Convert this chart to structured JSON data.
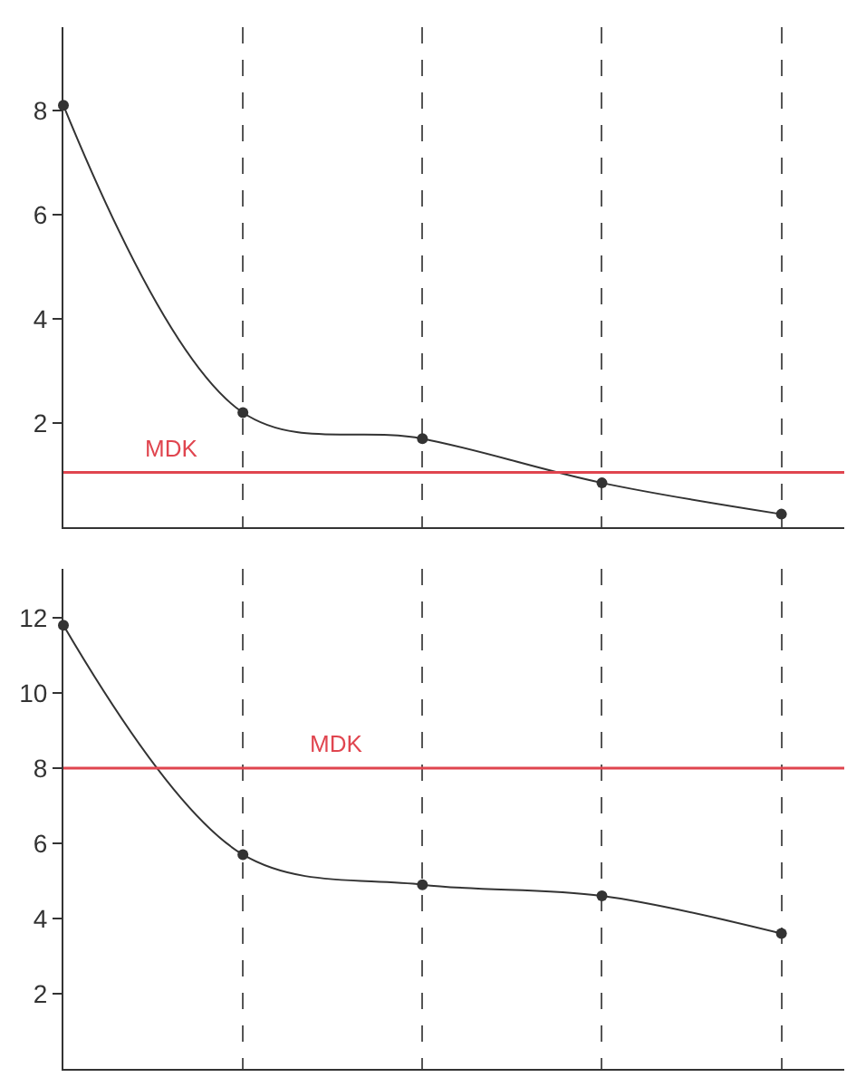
{
  "chart_data": [
    {
      "type": "line",
      "categories": [
        null,
        null,
        null,
        null,
        null
      ],
      "values": [
        8.1,
        2.2,
        1.7,
        0.85,
        0.25
      ],
      "color": "#333333",
      "marker": "circle",
      "line_style": "solid",
      "ylim": [
        0,
        9.6
      ],
      "yticks": [
        2,
        4,
        6,
        8
      ],
      "grid": "x",
      "tick_labels": "y",
      "ref_lines": [
        {
          "axis": "y",
          "value": 1.05,
          "label": "MDK",
          "color": "#e0454f"
        }
      ]
    },
    {
      "type": "line",
      "categories": [
        null,
        null,
        null,
        null,
        null
      ],
      "values": [
        11.8,
        5.7,
        4.9,
        4.6,
        3.6
      ],
      "color": "#333333",
      "marker": "circle",
      "line_style": "solid",
      "ylim": [
        0,
        13.3
      ],
      "yticks": [
        2,
        4,
        6,
        8,
        10,
        12
      ],
      "grid": "x",
      "tick_labels": "y",
      "ref_lines": [
        {
          "axis": "y",
          "value": 8.0,
          "label": "MDK",
          "color": "#e0454f"
        }
      ]
    }
  ]
}
